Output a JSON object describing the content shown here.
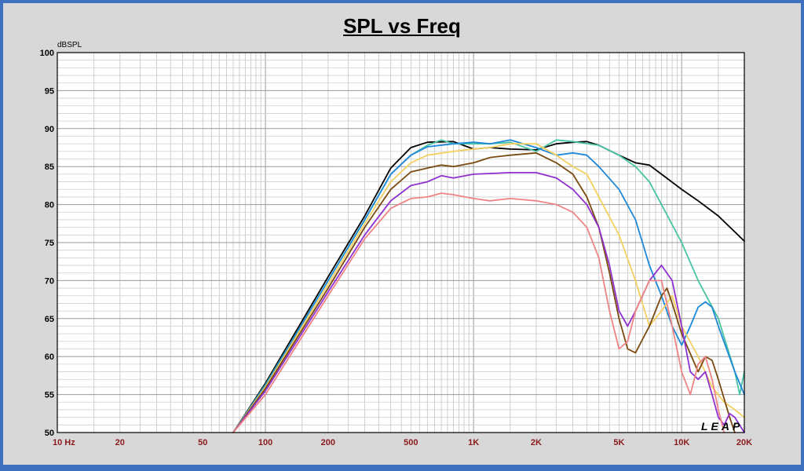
{
  "chart_data": {
    "type": "line",
    "title": "SPL vs Freq",
    "ylabel": "dBSPL",
    "xlabel": "",
    "x_scale": "log",
    "xlim": [
      10,
      20000
    ],
    "ylim": [
      50,
      100
    ],
    "grid": true,
    "y_ticks": [
      50,
      55,
      60,
      65,
      70,
      75,
      80,
      85,
      90,
      95,
      100
    ],
    "x_tick_labels": [
      {
        "value": 10,
        "label": "10  Hz"
      },
      {
        "value": 20,
        "label": "20"
      },
      {
        "value": 50,
        "label": "50"
      },
      {
        "value": 100,
        "label": "100"
      },
      {
        "value": 200,
        "label": "200"
      },
      {
        "value": 500,
        "label": "500"
      },
      {
        "value": 1000,
        "label": "1K"
      },
      {
        "value": 2000,
        "label": "2K"
      },
      {
        "value": 5000,
        "label": "5K"
      },
      {
        "value": 10000,
        "label": "10K"
      },
      {
        "value": 20000,
        "label": "20K"
      }
    ],
    "watermark": "LEAP",
    "series": [
      {
        "color": "#000000",
        "points": [
          [
            70,
            50
          ],
          [
            100,
            56.5
          ],
          [
            200,
            70.5
          ],
          [
            300,
            78.5
          ],
          [
            400,
            84.8
          ],
          [
            500,
            87.5
          ],
          [
            600,
            88.2
          ],
          [
            800,
            88.3
          ],
          [
            1000,
            87.3
          ],
          [
            1200,
            87.5
          ],
          [
            1500,
            87.3
          ],
          [
            2000,
            87.2
          ],
          [
            2500,
            88
          ],
          [
            3000,
            88.2
          ],
          [
            3500,
            88.3
          ],
          [
            4000,
            87.8
          ],
          [
            5000,
            86.5
          ],
          [
            6000,
            85.5
          ],
          [
            7000,
            85.2
          ],
          [
            8000,
            84
          ],
          [
            10000,
            82
          ],
          [
            12000,
            80.5
          ],
          [
            15000,
            78.5
          ],
          [
            20000,
            75.2
          ]
        ]
      },
      {
        "color": "#48c4a4",
        "points": [
          [
            70,
            50
          ],
          [
            100,
            56.3
          ],
          [
            200,
            70
          ],
          [
            300,
            78
          ],
          [
            400,
            84
          ],
          [
            500,
            86.5
          ],
          [
            600,
            87.8
          ],
          [
            700,
            88.5
          ],
          [
            800,
            88
          ],
          [
            1000,
            88
          ],
          [
            1200,
            88
          ],
          [
            1500,
            88.2
          ],
          [
            2000,
            87
          ],
          [
            2500,
            88.5
          ],
          [
            3000,
            88.3
          ],
          [
            4000,
            87.8
          ],
          [
            5000,
            86.5
          ],
          [
            6000,
            85
          ],
          [
            7000,
            83
          ],
          [
            8000,
            80
          ],
          [
            10000,
            75
          ],
          [
            12000,
            70
          ],
          [
            15000,
            65
          ],
          [
            18000,
            58
          ],
          [
            19000,
            55
          ],
          [
            20000,
            58
          ]
        ]
      },
      {
        "color": "#1e88d8",
        "points": [
          [
            70,
            50
          ],
          [
            100,
            56.2
          ],
          [
            200,
            70
          ],
          [
            300,
            78
          ],
          [
            400,
            84
          ],
          [
            500,
            86.5
          ],
          [
            600,
            87.6
          ],
          [
            800,
            88
          ],
          [
            1000,
            88.2
          ],
          [
            1200,
            88
          ],
          [
            1500,
            88.5
          ],
          [
            2000,
            87.5
          ],
          [
            2500,
            86.5
          ],
          [
            3000,
            86.8
          ],
          [
            3500,
            86.5
          ],
          [
            4000,
            85
          ],
          [
            5000,
            82
          ],
          [
            6000,
            78
          ],
          [
            7000,
            72
          ],
          [
            8000,
            68
          ],
          [
            9000,
            64
          ],
          [
            10000,
            61.5
          ],
          [
            11000,
            64
          ],
          [
            12000,
            66.5
          ],
          [
            13000,
            67.2
          ],
          [
            14000,
            66.5
          ],
          [
            15000,
            64
          ],
          [
            18000,
            58
          ],
          [
            20000,
            55
          ]
        ]
      },
      {
        "color": "#f4d060",
        "points": [
          [
            70,
            50
          ],
          [
            100,
            56
          ],
          [
            200,
            69.5
          ],
          [
            300,
            77.5
          ],
          [
            400,
            83
          ],
          [
            500,
            85.5
          ],
          [
            600,
            86.5
          ],
          [
            800,
            87
          ],
          [
            1000,
            87.3
          ],
          [
            1200,
            87.5
          ],
          [
            1500,
            88
          ],
          [
            2000,
            88
          ],
          [
            2500,
            86.5
          ],
          [
            3000,
            85
          ],
          [
            3500,
            84
          ],
          [
            4000,
            81
          ],
          [
            5000,
            76
          ],
          [
            6000,
            70
          ],
          [
            7000,
            64
          ],
          [
            8000,
            66
          ],
          [
            9000,
            68
          ],
          [
            10000,
            64
          ],
          [
            12000,
            60
          ],
          [
            14000,
            56
          ],
          [
            16000,
            54
          ],
          [
            18000,
            53
          ],
          [
            20000,
            52
          ]
        ]
      },
      {
        "color": "#7a4a10",
        "points": [
          [
            70,
            50
          ],
          [
            100,
            55.8
          ],
          [
            200,
            69
          ],
          [
            300,
            77
          ],
          [
            400,
            82
          ],
          [
            500,
            84.3
          ],
          [
            600,
            84.8
          ],
          [
            700,
            85.2
          ],
          [
            800,
            85
          ],
          [
            1000,
            85.5
          ],
          [
            1200,
            86.2
          ],
          [
            1500,
            86.5
          ],
          [
            2000,
            86.8
          ],
          [
            2500,
            85.5
          ],
          [
            3000,
            84
          ],
          [
            3500,
            81
          ],
          [
            4000,
            77
          ],
          [
            4500,
            71
          ],
          [
            5000,
            65
          ],
          [
            5500,
            61
          ],
          [
            6000,
            60.5
          ],
          [
            7000,
            64
          ],
          [
            8000,
            68
          ],
          [
            8500,
            69
          ],
          [
            9000,
            67
          ],
          [
            10000,
            63
          ],
          [
            12000,
            58
          ],
          [
            13000,
            60
          ],
          [
            14000,
            59.5
          ],
          [
            15000,
            57
          ],
          [
            17000,
            52
          ],
          [
            18000,
            50
          ]
        ]
      },
      {
        "color": "#9030d0",
        "points": [
          [
            70,
            50
          ],
          [
            100,
            55.5
          ],
          [
            200,
            68.5
          ],
          [
            300,
            76
          ],
          [
            400,
            80.5
          ],
          [
            500,
            82.5
          ],
          [
            600,
            83
          ],
          [
            700,
            83.8
          ],
          [
            800,
            83.5
          ],
          [
            1000,
            84
          ],
          [
            1500,
            84.2
          ],
          [
            2000,
            84.2
          ],
          [
            2500,
            83.5
          ],
          [
            3000,
            82
          ],
          [
            3500,
            80
          ],
          [
            4000,
            77
          ],
          [
            4500,
            72
          ],
          [
            5000,
            66
          ],
          [
            5500,
            64
          ],
          [
            6000,
            66
          ],
          [
            7000,
            70
          ],
          [
            8000,
            72
          ],
          [
            9000,
            70
          ],
          [
            10000,
            64
          ],
          [
            11000,
            58
          ],
          [
            12000,
            57
          ],
          [
            13000,
            58
          ],
          [
            14000,
            55
          ],
          [
            15000,
            52
          ],
          [
            16000,
            51
          ],
          [
            17000,
            52.5
          ],
          [
            18000,
            52
          ],
          [
            20000,
            50
          ]
        ]
      },
      {
        "color": "#ee8484",
        "points": [
          [
            70,
            50
          ],
          [
            100,
            55
          ],
          [
            200,
            68
          ],
          [
            300,
            75.5
          ],
          [
            400,
            79.5
          ],
          [
            500,
            80.8
          ],
          [
            600,
            81
          ],
          [
            700,
            81.5
          ],
          [
            800,
            81.3
          ],
          [
            1000,
            80.8
          ],
          [
            1200,
            80.5
          ],
          [
            1500,
            80.8
          ],
          [
            2000,
            80.5
          ],
          [
            2500,
            80
          ],
          [
            3000,
            79
          ],
          [
            3500,
            77
          ],
          [
            4000,
            73
          ],
          [
            4500,
            66
          ],
          [
            5000,
            61
          ],
          [
            5500,
            62
          ],
          [
            6000,
            66
          ],
          [
            7000,
            70
          ],
          [
            8000,
            70
          ],
          [
            9000,
            64
          ],
          [
            10000,
            58
          ],
          [
            11000,
            55
          ],
          [
            12000,
            59
          ],
          [
            13000,
            60
          ],
          [
            14000,
            57
          ],
          [
            15000,
            53
          ],
          [
            16000,
            50
          ]
        ]
      }
    ]
  }
}
